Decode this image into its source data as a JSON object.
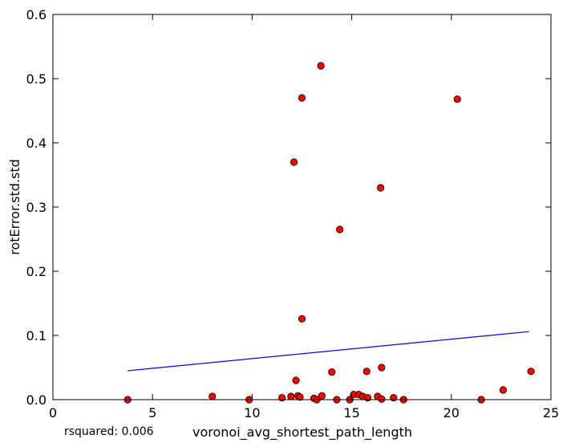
{
  "chart_data": {
    "type": "scatter",
    "title": "",
    "xlabel": "voronoi_avg_shortest_path_length",
    "ylabel": "rotError.std.std",
    "xlim": [
      0,
      25
    ],
    "ylim": [
      0,
      0.6
    ],
    "xticks": [
      0,
      5,
      10,
      15,
      20,
      25
    ],
    "yticks": [
      0.0,
      0.1,
      0.2,
      0.3,
      0.4,
      0.5,
      0.6
    ],
    "xtick_labels": [
      "0",
      "5",
      "10",
      "15",
      "20",
      "25"
    ],
    "ytick_labels": [
      "0.0",
      "0.1",
      "0.2",
      "0.3",
      "0.4",
      "0.5",
      "0.6"
    ],
    "grid": false,
    "point_color": "#ff0000",
    "line_color": "#0000ff",
    "points": [
      {
        "x": 3.75,
        "y": 0.0
      },
      {
        "x": 8.0,
        "y": 0.005
      },
      {
        "x": 9.85,
        "y": 0.0
      },
      {
        "x": 11.5,
        "y": 0.003
      },
      {
        "x": 11.95,
        "y": 0.005
      },
      {
        "x": 12.1,
        "y": 0.37
      },
      {
        "x": 12.2,
        "y": 0.03
      },
      {
        "x": 12.3,
        "y": 0.006
      },
      {
        "x": 12.4,
        "y": 0.004
      },
      {
        "x": 12.5,
        "y": 0.47
      },
      {
        "x": 12.5,
        "y": 0.126
      },
      {
        "x": 13.1,
        "y": 0.002
      },
      {
        "x": 13.25,
        "y": 0.0
      },
      {
        "x": 13.45,
        "y": 0.52
      },
      {
        "x": 13.5,
        "y": 0.006
      },
      {
        "x": 14.0,
        "y": 0.043
      },
      {
        "x": 14.25,
        "y": 0.0
      },
      {
        "x": 14.4,
        "y": 0.265
      },
      {
        "x": 14.9,
        "y": 0.0
      },
      {
        "x": 15.1,
        "y": 0.008
      },
      {
        "x": 15.35,
        "y": 0.008
      },
      {
        "x": 15.55,
        "y": 0.005
      },
      {
        "x": 15.75,
        "y": 0.044
      },
      {
        "x": 15.8,
        "y": 0.003
      },
      {
        "x": 16.3,
        "y": 0.005
      },
      {
        "x": 16.45,
        "y": 0.33
      },
      {
        "x": 16.5,
        "y": 0.05
      },
      {
        "x": 16.5,
        "y": 0.001
      },
      {
        "x": 17.1,
        "y": 0.003
      },
      {
        "x": 17.6,
        "y": 0.0
      },
      {
        "x": 20.3,
        "y": 0.468
      },
      {
        "x": 21.5,
        "y": 0.0
      },
      {
        "x": 22.6,
        "y": 0.015
      },
      {
        "x": 24.0,
        "y": 0.044
      }
    ],
    "fit_line": {
      "x": [
        3.75,
        23.9
      ],
      "y": [
        0.045,
        0.106
      ]
    },
    "annotation": "rsquared: 0.006"
  }
}
